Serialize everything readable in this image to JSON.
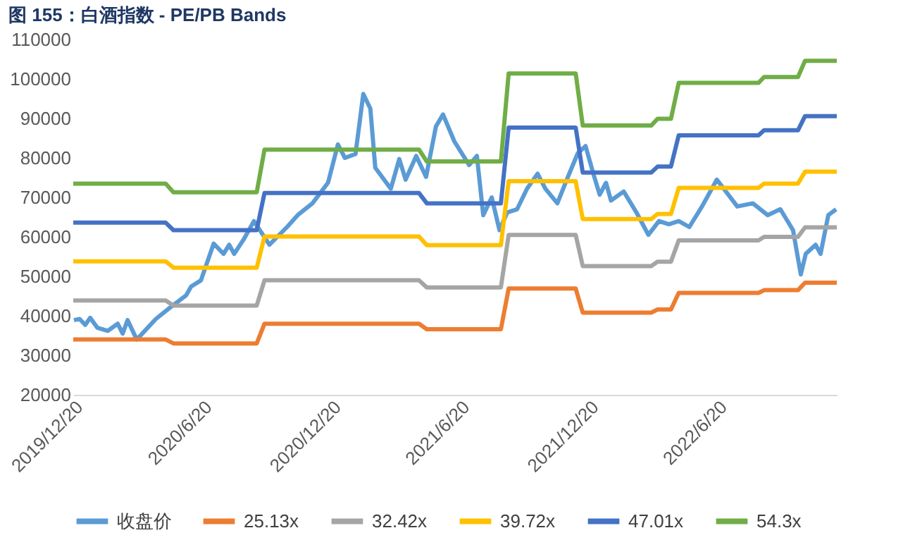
{
  "chart_data": {
    "type": "line",
    "title": "图 155：白酒指数 - PE/PB Bands",
    "ylim": [
      20000,
      110000
    ],
    "yticks": [
      20000,
      30000,
      40000,
      50000,
      60000,
      70000,
      80000,
      90000,
      100000,
      110000
    ],
    "xlim": [
      "2019-12-20",
      "2022-12-06"
    ],
    "xticks": [
      {
        "value": "2019-12-20",
        "label": "2019/12/20"
      },
      {
        "value": "2020-06-20",
        "label": "2020/6/20"
      },
      {
        "value": "2020-12-20",
        "label": "2020/12/20"
      },
      {
        "value": "2021-06-20",
        "label": "2021/6/20"
      },
      {
        "value": "2021-12-20",
        "label": "2021/12/20"
      },
      {
        "value": "2022-06-20",
        "label": "2022/6/20"
      }
    ],
    "grid": false,
    "legend": "bottom",
    "marker": "none",
    "line_style": "solid",
    "series": [
      {
        "name": "收盘价",
        "color": "#5b9bd5",
        "x": [
          "2019-12-21",
          "2019-12-29",
          "2020-01-06",
          "2020-01-13",
          "2020-01-23",
          "2020-02-07",
          "2020-02-21",
          "2020-02-28",
          "2020-03-06",
          "2020-03-19",
          "2020-04-15",
          "2020-05-06",
          "2020-05-28",
          "2020-06-04",
          "2020-06-18",
          "2020-07-06",
          "2020-07-20",
          "2020-07-28",
          "2020-08-04",
          "2020-08-18",
          "2020-09-01",
          "2020-09-23",
          "2020-10-18",
          "2020-11-02",
          "2020-11-23",
          "2020-12-15",
          "2020-12-29",
          "2021-01-08",
          "2021-01-23",
          "2021-02-03",
          "2021-02-13",
          "2021-02-20",
          "2021-03-14",
          "2021-03-26",
          "2021-04-04",
          "2021-04-19",
          "2021-05-03",
          "2021-05-17",
          "2021-05-27",
          "2021-06-12",
          "2021-07-03",
          "2021-07-14",
          "2021-07-23",
          "2021-08-04",
          "2021-08-15",
          "2021-08-26",
          "2021-09-09",
          "2021-09-23",
          "2021-10-08",
          "2021-10-19",
          "2021-11-05",
          "2021-11-20",
          "2021-12-04",
          "2021-12-15",
          "2021-12-26",
          "2022-01-04",
          "2022-01-13",
          "2022-01-20",
          "2022-02-07",
          "2022-02-25",
          "2022-03-14",
          "2022-03-29",
          "2022-04-12",
          "2022-04-26",
          "2022-05-11",
          "2022-05-29",
          "2022-06-19",
          "2022-07-18",
          "2022-08-09",
          "2022-08-30",
          "2022-09-17",
          "2022-10-05",
          "2022-10-16",
          "2022-10-23",
          "2022-11-06",
          "2022-11-13",
          "2022-11-24",
          "2022-12-05"
        ],
        "values": [
          38900,
          39200,
          37700,
          39500,
          37000,
          36200,
          38000,
          35500,
          38900,
          34000,
          39200,
          42200,
          45200,
          47400,
          49000,
          58300,
          55700,
          58000,
          55700,
          59500,
          64000,
          58000,
          62500,
          65500,
          68500,
          73700,
          83400,
          80000,
          81000,
          96200,
          92500,
          77500,
          72200,
          79700,
          74500,
          80500,
          75200,
          88000,
          91000,
          84200,
          78200,
          80500,
          65500,
          70000,
          61700,
          66200,
          67000,
          72200,
          76000,
          72200,
          68500,
          75200,
          81200,
          83000,
          76000,
          70700,
          73700,
          69200,
          71500,
          66200,
          60500,
          64000,
          63200,
          64000,
          62500,
          67700,
          74500,
          67700,
          68500,
          65500,
          67000,
          61700,
          50500,
          55700,
          58000,
          55700,
          65500,
          67000
        ]
      },
      {
        "name": "25.13x",
        "color": "#ed7d31",
        "x": [
          "2019-12-20",
          "2020-04-29",
          "2020-05-10",
          "2020-09-05",
          "2020-09-16",
          "2021-04-23",
          "2021-05-04",
          "2021-08-17",
          "2021-08-28",
          "2021-12-01",
          "2021-12-11",
          "2022-03-18",
          "2022-03-27",
          "2022-04-15",
          "2022-04-26",
          "2022-08-17",
          "2022-08-25",
          "2022-10-12",
          "2022-10-22",
          "2022-12-06"
        ],
        "values": [
          34000,
          34000,
          33000,
          33000,
          38000,
          38000,
          36600,
          36600,
          46900,
          46900,
          40800,
          40800,
          41600,
          41600,
          45800,
          45800,
          46500,
          46500,
          48400,
          48400
        ]
      },
      {
        "name": "32.42x",
        "color": "#a5a5a5",
        "x": [
          "2019-12-20",
          "2020-04-29",
          "2020-05-10",
          "2020-09-05",
          "2020-09-16",
          "2021-04-23",
          "2021-05-04",
          "2021-08-17",
          "2021-08-28",
          "2021-12-01",
          "2021-12-11",
          "2022-03-18",
          "2022-03-27",
          "2022-04-15",
          "2022-04-26",
          "2022-08-17",
          "2022-08-25",
          "2022-10-12",
          "2022-10-22",
          "2022-12-06"
        ],
        "values": [
          43900,
          43900,
          42600,
          42600,
          49000,
          49000,
          47200,
          47200,
          60500,
          60500,
          52600,
          52600,
          53700,
          53700,
          59100,
          59100,
          60000,
          60000,
          62400,
          62400
        ]
      },
      {
        "name": "39.72x",
        "color": "#ffc000",
        "x": [
          "2019-12-20",
          "2020-04-29",
          "2020-05-10",
          "2020-09-05",
          "2020-09-16",
          "2021-04-23",
          "2021-05-04",
          "2021-08-17",
          "2021-08-28",
          "2021-12-01",
          "2021-12-11",
          "2022-03-18",
          "2022-03-27",
          "2022-04-15",
          "2022-04-26",
          "2022-08-17",
          "2022-08-25",
          "2022-10-12",
          "2022-10-22",
          "2022-12-06"
        ],
        "values": [
          53800,
          53800,
          52200,
          52200,
          60100,
          60100,
          57900,
          57900,
          74100,
          74100,
          64500,
          64500,
          65800,
          65800,
          72400,
          72400,
          73500,
          73500,
          76500,
          76500
        ]
      },
      {
        "name": "47.01x",
        "color": "#4472c4",
        "x": [
          "2019-12-20",
          "2020-04-29",
          "2020-05-10",
          "2020-09-05",
          "2020-09-16",
          "2021-04-23",
          "2021-05-04",
          "2021-08-17",
          "2021-08-28",
          "2021-12-01",
          "2021-12-11",
          "2022-03-18",
          "2022-03-27",
          "2022-04-15",
          "2022-04-26",
          "2022-08-17",
          "2022-08-25",
          "2022-10-12",
          "2022-10-22",
          "2022-12-06"
        ],
        "values": [
          63600,
          63600,
          61700,
          61700,
          71100,
          71100,
          68500,
          68500,
          87700,
          87700,
          76300,
          76300,
          77800,
          77800,
          85700,
          85700,
          87000,
          87000,
          90600,
          90600
        ]
      },
      {
        "name": "54.3x",
        "color": "#70ad47",
        "x": [
          "2019-12-20",
          "2020-04-29",
          "2020-05-10",
          "2020-09-05",
          "2020-09-16",
          "2021-04-23",
          "2021-05-04",
          "2021-08-17",
          "2021-08-28",
          "2021-12-01",
          "2021-12-11",
          "2022-03-18",
          "2022-03-27",
          "2022-04-15",
          "2022-04-26",
          "2022-08-17",
          "2022-08-25",
          "2022-10-12",
          "2022-10-22",
          "2022-12-06"
        ],
        "values": [
          73500,
          73500,
          71300,
          71300,
          82100,
          82100,
          79100,
          79100,
          101400,
          101400,
          88200,
          88200,
          89900,
          89900,
          99000,
          99000,
          100500,
          100500,
          104600,
          104600
        ]
      }
    ]
  }
}
